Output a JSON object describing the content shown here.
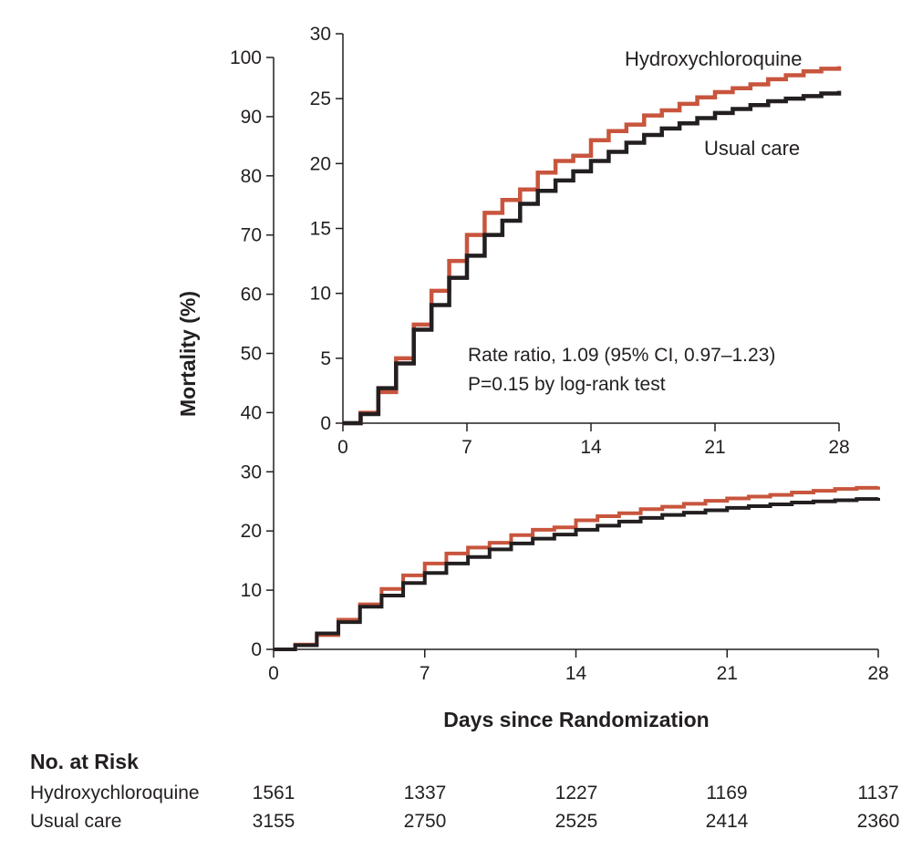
{
  "chart_data": {
    "type": "line",
    "ylabel": "Mortality (%)",
    "xlabel": "Days since Randomization",
    "x_ticks": [
      0,
      7,
      14,
      21,
      28
    ],
    "main": {
      "xlim": [
        0,
        28
      ],
      "ylim": [
        0,
        100
      ],
      "y_ticks": [
        0,
        10,
        20,
        30,
        40,
        50,
        60,
        70,
        80,
        90,
        100
      ],
      "y_tick_labels": [
        "0",
        "10",
        "20",
        "30",
        "40",
        "50",
        "60",
        "70",
        "80",
        "90",
        "100"
      ]
    },
    "inset": {
      "xlim": [
        0,
        28
      ],
      "ylim": [
        0,
        30
      ],
      "y_ticks": [
        0,
        5,
        10,
        15,
        20,
        25,
        30
      ],
      "y_tick_labels": [
        "0",
        "5",
        "10",
        "15",
        "20",
        "25",
        "30"
      ]
    },
    "x_tick_labels": [
      "0",
      "7",
      "14",
      "21",
      "28"
    ],
    "series": [
      {
        "name": "Hydroxychloroquine",
        "color": "#c8553d",
        "x": [
          0,
          1,
          2,
          3,
          4,
          5,
          6,
          7,
          8,
          9,
          10,
          11,
          12,
          13,
          14,
          15,
          16,
          17,
          18,
          19,
          20,
          21,
          22,
          23,
          24,
          25,
          26,
          27,
          28
        ],
        "y": [
          0,
          0.8,
          2.4,
          5.0,
          7.6,
          10.2,
          12.5,
          14.5,
          16.2,
          17.2,
          18.0,
          19.3,
          20.2,
          20.6,
          21.8,
          22.5,
          23.0,
          23.7,
          24.1,
          24.6,
          25.1,
          25.5,
          25.8,
          26.1,
          26.5,
          26.8,
          27.1,
          27.3,
          27.5
        ]
      },
      {
        "name": "Usual care",
        "color": "#231f20",
        "x": [
          0,
          1,
          2,
          3,
          4,
          5,
          6,
          7,
          8,
          9,
          10,
          11,
          12,
          13,
          14,
          15,
          16,
          17,
          18,
          19,
          20,
          21,
          22,
          23,
          24,
          25,
          26,
          27,
          28
        ],
        "y": [
          0,
          0.7,
          2.7,
          4.6,
          7.2,
          9.1,
          11.2,
          12.9,
          14.5,
          15.6,
          16.9,
          17.9,
          18.7,
          19.4,
          20.2,
          20.9,
          21.6,
          22.2,
          22.7,
          23.1,
          23.5,
          23.9,
          24.2,
          24.5,
          24.8,
          25.0,
          25.2,
          25.4,
          25.6
        ]
      }
    ],
    "annotation": {
      "line1": "Rate ratio, 1.09 (95% CI, 0.97–1.23)",
      "line2": "P=0.15 by log-rank test"
    }
  },
  "risk_table": {
    "title": "No. at Risk",
    "rows": [
      {
        "name": "Hydroxychloroquine",
        "values": [
          "1561",
          "1337",
          "1227",
          "1169",
          "1137"
        ]
      },
      {
        "name": "Usual care",
        "values": [
          "3155",
          "2750",
          "2525",
          "2414",
          "2360"
        ]
      }
    ]
  }
}
